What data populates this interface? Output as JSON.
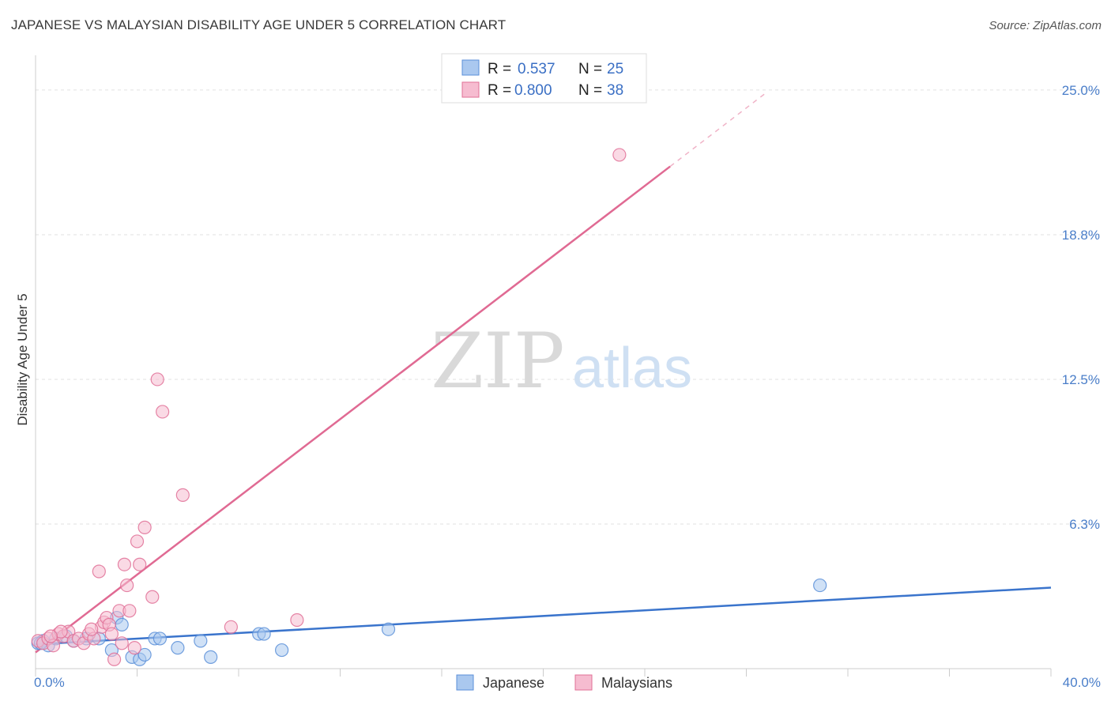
{
  "header": {
    "title": "JAPANESE VS MALAYSIAN DISABILITY AGE UNDER 5 CORRELATION CHART",
    "source": "Source: ZipAtlas.com"
  },
  "watermark": {
    "zip": "ZIP",
    "atlas": "atlas"
  },
  "colors": {
    "japanese": "#5b8fd8",
    "japanese_fill": "#aac8ef",
    "malaysian": "#e07096",
    "malaysian_fill": "#f6bcd0",
    "tick": "#4a7ec9"
  },
  "chart_data": {
    "type": "scatter",
    "title": "JAPANESE VS MALAYSIAN DISABILITY AGE UNDER 5 CORRELATION CHART",
    "xlabel": "",
    "ylabel": "Disability Age Under 5",
    "xlim": [
      0,
      40
    ],
    "ylim": [
      0,
      26.5
    ],
    "x_tick_labels": [
      "0.0%",
      "40.0%"
    ],
    "y_ticks": [
      {
        "value": 6.25,
        "label": "6.3%"
      },
      {
        "value": 12.5,
        "label": "12.5%"
      },
      {
        "value": 18.75,
        "label": "18.8%"
      },
      {
        "value": 25.0,
        "label": "25.0%"
      }
    ],
    "legend": [
      {
        "series": "Japanese",
        "r_label": "R =",
        "r_value": "0.537",
        "n_label": "N =",
        "n_value": "25"
      },
      {
        "series": "Malaysian",
        "r_label": "R =",
        "r_value": "0.800",
        "n_label": "N =",
        "n_value": "38"
      }
    ],
    "bottom_legend": [
      "Japanese",
      "Malaysians"
    ],
    "series": [
      {
        "name": "Japanese",
        "points": [
          [
            0.1,
            1.1
          ],
          [
            0.3,
            1.2
          ],
          [
            0.5,
            1.0
          ],
          [
            0.8,
            1.3
          ],
          [
            1.2,
            1.4
          ],
          [
            1.5,
            1.2
          ],
          [
            2.0,
            1.3
          ],
          [
            2.5,
            1.3
          ],
          [
            3.2,
            2.2
          ],
          [
            3.4,
            1.9
          ],
          [
            3.0,
            0.8
          ],
          [
            3.8,
            0.5
          ],
          [
            4.1,
            0.4
          ],
          [
            4.3,
            0.6
          ],
          [
            4.7,
            1.3
          ],
          [
            4.9,
            1.3
          ],
          [
            5.6,
            0.9
          ],
          [
            6.5,
            1.2
          ],
          [
            6.9,
            0.5
          ],
          [
            8.8,
            1.5
          ],
          [
            9.0,
            1.5
          ],
          [
            9.7,
            0.8
          ],
          [
            13.9,
            1.7
          ],
          [
            30.9,
            3.6
          ],
          [
            0.2,
            1.1
          ]
        ],
        "trend": {
          "x1": 0,
          "y1": 1.05,
          "x2": 40,
          "y2": 3.5
        }
      },
      {
        "name": "Malaysian",
        "points": [
          [
            0.1,
            1.2
          ],
          [
            0.3,
            1.1
          ],
          [
            0.5,
            1.3
          ],
          [
            0.7,
            1.0
          ],
          [
            0.9,
            1.5
          ],
          [
            1.1,
            1.4
          ],
          [
            1.3,
            1.6
          ],
          [
            1.5,
            1.2
          ],
          [
            1.7,
            1.3
          ],
          [
            1.9,
            1.1
          ],
          [
            2.1,
            1.5
          ],
          [
            2.3,
            1.3
          ],
          [
            2.5,
            4.2
          ],
          [
            2.6,
            1.8
          ],
          [
            2.7,
            2.0
          ],
          [
            2.8,
            2.2
          ],
          [
            2.9,
            1.9
          ],
          [
            3.0,
            1.5
          ],
          [
            3.1,
            0.4
          ],
          [
            3.3,
            2.5
          ],
          [
            3.5,
            4.5
          ],
          [
            3.6,
            3.6
          ],
          [
            3.7,
            2.5
          ],
          [
            3.9,
            0.9
          ],
          [
            3.4,
            1.1
          ],
          [
            4.0,
            5.5
          ],
          [
            4.1,
            4.5
          ],
          [
            4.3,
            6.1
          ],
          [
            4.6,
            3.1
          ],
          [
            4.8,
            12.5
          ],
          [
            5.0,
            11.1
          ],
          [
            5.8,
            7.5
          ],
          [
            7.7,
            1.8
          ],
          [
            10.3,
            2.1
          ],
          [
            23.0,
            22.2
          ],
          [
            1.0,
            1.6
          ],
          [
            2.2,
            1.7
          ],
          [
            0.6,
            1.4
          ]
        ],
        "trend": {
          "x1": 0,
          "y1": 0.7,
          "x2": 25.0,
          "y2": 21.7
        },
        "trend_dashed": {
          "x1": 25.0,
          "y1": 21.7,
          "x2": 28.8,
          "y2": 24.9
        }
      }
    ]
  }
}
